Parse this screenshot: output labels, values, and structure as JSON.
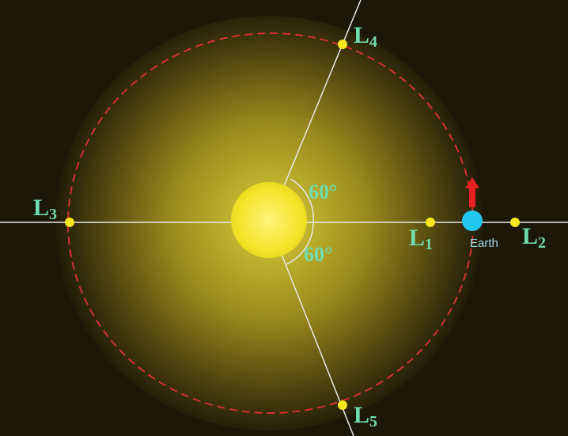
{
  "points": [
    {
      "letter": "L",
      "subscript": "1"
    },
    {
      "letter": "L",
      "subscript": "2"
    },
    {
      "letter": "L",
      "subscript": "3"
    },
    {
      "letter": "L",
      "subscript": "4"
    },
    {
      "letter": "L",
      "subscript": "5"
    }
  ],
  "angles": [
    "60°",
    "60°"
  ],
  "earth": "Earth"
}
